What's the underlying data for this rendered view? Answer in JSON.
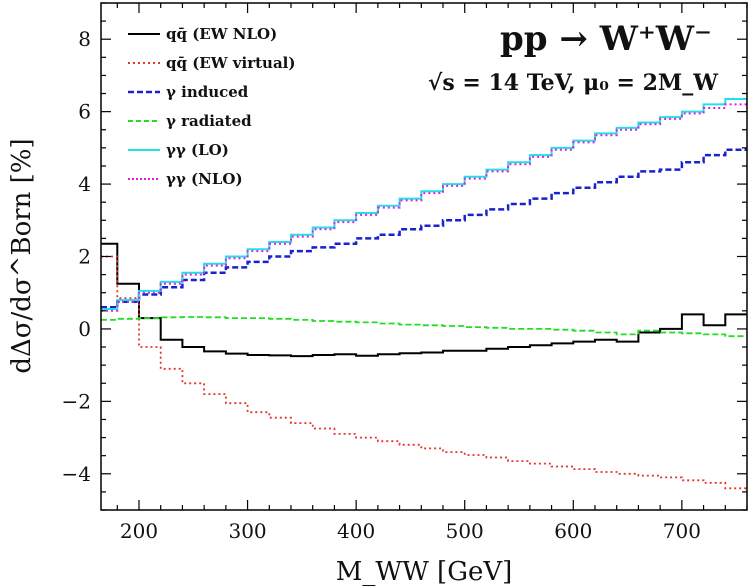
{
  "chart_data": {
    "type": "line",
    "title": "pp → W⁺W⁻",
    "subtitle": "√s = 14 TeV, μ₀ = 2M_W",
    "xlabel": "M_WW [GeV]",
    "ylabel": "dΔσ/dσ^Born [%]",
    "xlim": [
      165,
      760
    ],
    "ylim": [
      -5,
      9
    ],
    "xticks": [
      200,
      300,
      400,
      500,
      600,
      700
    ],
    "yticks": [
      8,
      6,
      4,
      2,
      0,
      -2,
      -4
    ],
    "ytick_labels": [
      "8",
      "6",
      "4",
      "2",
      "0",
      "−2",
      "−4"
    ],
    "bin_edges": [
      165,
      180,
      200,
      220,
      240,
      260,
      280,
      300,
      320,
      340,
      360,
      380,
      400,
      420,
      440,
      460,
      480,
      500,
      520,
      540,
      560,
      580,
      600,
      620,
      640,
      660,
      680,
      700,
      720,
      740,
      760
    ],
    "series": [
      {
        "name": "qq̄ (EW NLO)",
        "color": "#000000",
        "dash": "solid",
        "values": [
          2.35,
          1.25,
          0.3,
          -0.3,
          -0.5,
          -0.62,
          -0.68,
          -0.72,
          -0.73,
          -0.75,
          -0.72,
          -0.7,
          -0.74,
          -0.7,
          -0.67,
          -0.65,
          -0.6,
          -0.6,
          -0.55,
          -0.5,
          -0.45,
          -0.4,
          -0.35,
          -0.3,
          -0.35,
          -0.1,
          0.0,
          0.4,
          0.1,
          0.4
        ]
      },
      {
        "name": "qq̄ (EW virtual)",
        "color": "#e8332a",
        "dash": "dot",
        "values": [
          2.0,
          0.85,
          -0.5,
          -1.1,
          -1.5,
          -1.8,
          -2.05,
          -2.3,
          -2.45,
          -2.6,
          -2.75,
          -2.9,
          -3.0,
          -3.1,
          -3.2,
          -3.3,
          -3.4,
          -3.48,
          -3.55,
          -3.65,
          -3.72,
          -3.8,
          -3.87,
          -3.95,
          -4.0,
          -4.05,
          -4.1,
          -4.18,
          -4.25,
          -4.4
        ]
      },
      {
        "name": "γ induced",
        "color": "#1a22cc",
        "dash": "dash",
        "values": [
          0.6,
          0.75,
          0.95,
          1.15,
          1.35,
          1.55,
          1.7,
          1.85,
          2.0,
          2.15,
          2.25,
          2.35,
          2.5,
          2.6,
          2.75,
          2.85,
          3.0,
          3.15,
          3.3,
          3.45,
          3.6,
          3.75,
          3.9,
          4.05,
          4.2,
          4.35,
          4.4,
          4.6,
          4.8,
          4.95
        ]
      },
      {
        "name": "γ radiated",
        "color": "#22dd22",
        "dash": "dash",
        "values": [
          0.25,
          0.28,
          0.3,
          0.32,
          0.33,
          0.32,
          0.3,
          0.3,
          0.28,
          0.25,
          0.22,
          0.2,
          0.18,
          0.15,
          0.12,
          0.1,
          0.08,
          0.05,
          0.03,
          0.0,
          0.0,
          -0.02,
          -0.05,
          -0.1,
          -0.15,
          -0.05,
          -0.1,
          -0.12,
          -0.15,
          -0.2
        ]
      },
      {
        "name": "γγ (LO)",
        "color": "#22e0e8",
        "dash": "solid",
        "values": [
          0.55,
          0.8,
          1.05,
          1.3,
          1.55,
          1.8,
          2.0,
          2.2,
          2.4,
          2.6,
          2.8,
          3.0,
          3.2,
          3.4,
          3.6,
          3.8,
          4.0,
          4.2,
          4.4,
          4.6,
          4.8,
          5.0,
          5.2,
          5.4,
          5.55,
          5.7,
          5.85,
          6.0,
          6.2,
          6.35
        ]
      },
      {
        "name": "γγ (NLO)",
        "color": "#dd22dd",
        "dash": "dot",
        "values": [
          0.5,
          0.75,
          1.0,
          1.25,
          1.5,
          1.75,
          1.95,
          2.15,
          2.35,
          2.55,
          2.75,
          2.95,
          3.15,
          3.35,
          3.55,
          3.75,
          3.95,
          4.15,
          4.35,
          4.55,
          4.75,
          4.95,
          5.15,
          5.35,
          5.5,
          5.65,
          5.8,
          5.95,
          6.1,
          6.2
        ]
      }
    ],
    "legend_position": "top-left",
    "grid": false
  }
}
